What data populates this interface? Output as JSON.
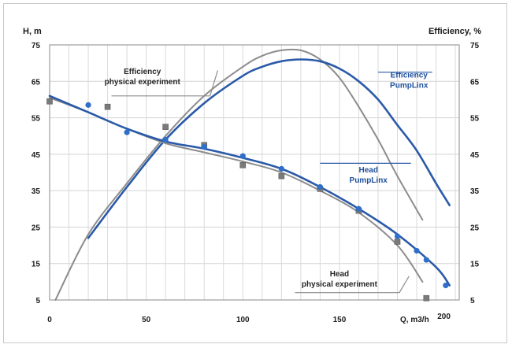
{
  "chart_data": {
    "type": "line",
    "y_left_label": "H, m",
    "y_right_label": "Efficiency, %",
    "x_label": "Q, m3/h",
    "xlim": [
      0,
      212
    ],
    "ylim": [
      5,
      75
    ],
    "x_ticks": [
      "0",
      "50",
      "100",
      "150",
      "200"
    ],
    "y_ticks": [
      "5",
      "15",
      "25",
      "35",
      "45",
      "55",
      "65",
      "75"
    ],
    "grid": true,
    "colors": {
      "experiment": "#8c8c8c",
      "pumplinx": "#2a5aa8",
      "experiment_marker": "#7a7a7a",
      "pumplinx_marker": "#2f6fc9"
    },
    "series": [
      {
        "name": "Efficiency physical experiment",
        "kind": "curve",
        "style": "experiment",
        "x": [
          3,
          20,
          40,
          60,
          80,
          100,
          110,
          120,
          130,
          140,
          150,
          160,
          170,
          180,
          193
        ],
        "y": [
          5,
          23,
          37,
          50,
          61,
          69,
          72,
          73.5,
          73.5,
          71,
          66,
          58,
          49,
          39,
          27
        ]
      },
      {
        "name": "Efficiency PumpLinx",
        "kind": "curve",
        "style": "pumplinx",
        "x": [
          20,
          40,
          60,
          80,
          100,
          110,
          120,
          130,
          140,
          150,
          160,
          170,
          180,
          190,
          200,
          207
        ],
        "y": [
          22,
          36,
          49,
          59,
          66.5,
          69,
          70.5,
          71,
          70.5,
          68.5,
          65,
          60,
          53,
          46,
          37,
          31
        ]
      },
      {
        "name": "Head physical experiment",
        "kind": "curve",
        "style": "experiment",
        "x": [
          0,
          20,
          40,
          60,
          80,
          100,
          120,
          140,
          160,
          180,
          193
        ],
        "y": [
          60.5,
          56.5,
          52,
          48,
          45.5,
          43,
          40,
          35,
          29,
          20,
          10
        ]
      },
      {
        "name": "Head PumpLinx",
        "kind": "curve",
        "style": "pumplinx",
        "x": [
          0,
          20,
          40,
          60,
          80,
          100,
          120,
          140,
          160,
          180,
          200,
          207
        ],
        "y": [
          61,
          56.5,
          52,
          48.5,
          46.5,
          44,
          41,
          36,
          30,
          23,
          14,
          9
        ]
      },
      {
        "name": "Head experiment points",
        "kind": "points",
        "style": "experiment_marker",
        "marker": "square",
        "x": [
          0,
          30,
          60,
          80,
          100,
          120,
          140,
          160,
          180,
          195
        ],
        "y": [
          59.5,
          58,
          52.5,
          47.5,
          42,
          39,
          35.5,
          29.5,
          21,
          5.5
        ]
      },
      {
        "name": "Head PumpLinx points",
        "kind": "points",
        "style": "pumplinx_marker",
        "marker": "circle",
        "x": [
          20,
          40,
          60,
          80,
          100,
          120,
          140,
          160,
          180,
          190,
          195,
          205
        ],
        "y": [
          58.5,
          51,
          49,
          47,
          44.5,
          41,
          36,
          30,
          22.5,
          18.5,
          16,
          9
        ]
      }
    ],
    "annotations": [
      {
        "lines": [
          "Efficiency",
          "physical experiment"
        ],
        "style": "experiment",
        "text_at": [
          48,
          67
        ],
        "underline": [
          [
            32,
            61
          ],
          [
            83,
            61
          ],
          [
            87,
            68
          ]
        ]
      },
      {
        "lines": [
          "Efficiency",
          "PumpLinx"
        ],
        "style": "pumplinx",
        "text_at": [
          186,
          66
        ],
        "underline": [
          [
            170,
            67.5
          ],
          [
            198,
            67.5
          ]
        ]
      },
      {
        "lines": [
          "Head",
          "PumpLinx"
        ],
        "style": "pumplinx",
        "text_at": [
          165,
          40
        ],
        "underline": [
          [
            140,
            42.5
          ],
          [
            187,
            42.5
          ]
        ]
      },
      {
        "lines": [
          "Head",
          "physical experiment"
        ],
        "style": "experiment",
        "text_at": [
          150,
          11.5
        ],
        "underline": [
          [
            127,
            7
          ],
          [
            181,
            7
          ],
          [
            186,
            11.5
          ]
        ]
      }
    ]
  }
}
